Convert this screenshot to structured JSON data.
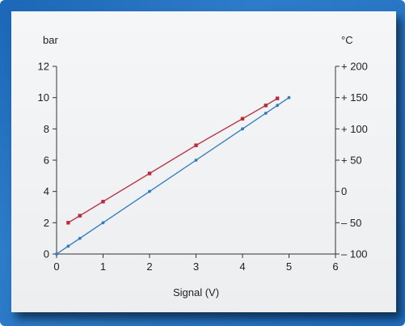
{
  "chart_data": {
    "type": "line",
    "xlabel": "Signal (V)",
    "ylabel_left": "bar",
    "ylabel_right": "°C",
    "xlim": [
      0,
      6
    ],
    "ylim_left": [
      0,
      12
    ],
    "ylim_right": [
      -100,
      200
    ],
    "x_ticks": [
      "0",
      "1",
      "2",
      "3",
      "4",
      "5",
      "6"
    ],
    "y_left_ticks": [
      "0",
      "2",
      "4",
      "6",
      "8",
      "10",
      "12"
    ],
    "y_right_ticks": [
      "– 100",
      "– 50",
      "0",
      "+ 50",
      "+ 100",
      "+ 150",
      "+ 200"
    ],
    "series": [
      {
        "axis": "left",
        "color": "#2b7bc6",
        "marker": "dot",
        "x": [
          0,
          0.25,
          0.5,
          1,
          2,
          3,
          4,
          4.5,
          4.75,
          5
        ],
        "y": [
          0,
          0.5,
          1,
          2,
          4,
          6,
          8,
          9,
          9.5,
          10
        ]
      },
      {
        "axis": "left",
        "color": "#c0283a",
        "marker": "square",
        "x": [
          0.25,
          0.5,
          1,
          2,
          3,
          4,
          4.5,
          4.75
        ],
        "y": [
          2,
          2.45,
          3.35,
          5.15,
          6.95,
          8.65,
          9.5,
          9.95
        ]
      }
    ]
  }
}
